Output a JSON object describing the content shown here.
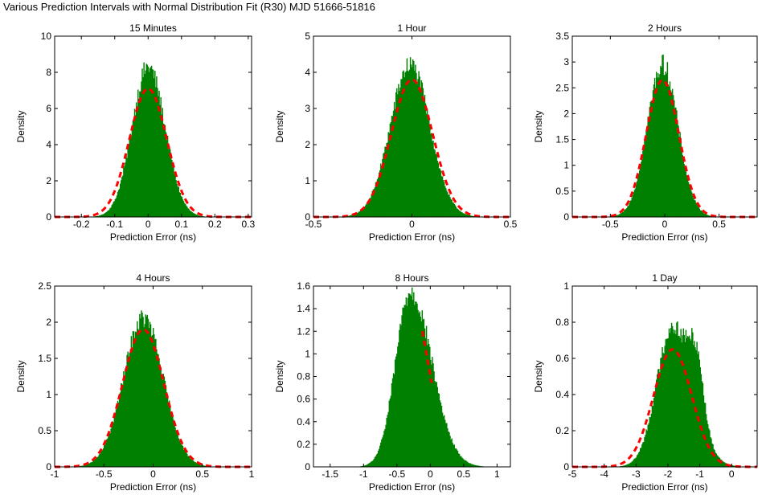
{
  "figure": {
    "title": "Various Prediction Intervals with Normal Distribution Fit (R30) MJD 51666-51816"
  },
  "colors": {
    "histogram": "#008000",
    "fit": "#ff0000",
    "axes": "#000000"
  },
  "chart_data": [
    {
      "type": "bar",
      "title": "15 Minutes",
      "xlabel": "Prediction Error (ns)",
      "ylabel": "Density",
      "xlim": [
        -0.28,
        0.31
      ],
      "ylim": [
        0,
        10
      ],
      "xticks": [
        -0.2,
        -0.1,
        0,
        0.1,
        0.2,
        0.3
      ],
      "xtick_labels": [
        "-0.2",
        "-0.1",
        "0",
        "0.1",
        "0.2",
        "0.3"
      ],
      "yticks": [
        0,
        2,
        4,
        6,
        8,
        10
      ],
      "ytick_labels": [
        "0",
        "2",
        "4",
        "6",
        "8",
        "10"
      ],
      "histogram": {
        "mean": 0.0,
        "std": 0.05,
        "peak": 8.3,
        "left_std": 0.048,
        "right_std": 0.05,
        "skew": 0
      },
      "fit": {
        "mean": 0.0,
        "std": 0.056,
        "peak": 7.1
      },
      "grid": false
    },
    {
      "type": "bar",
      "title": "1 Hour",
      "xlabel": "Prediction Error (ns)",
      "ylabel": "Density",
      "xlim": [
        -0.5,
        0.5
      ],
      "ylim": [
        0,
        5
      ],
      "xticks": [
        -0.5,
        0,
        0.5
      ],
      "xtick_labels": [
        "-0.5",
        "0",
        "0.5"
      ],
      "yticks": [
        0,
        1,
        2,
        3,
        4,
        5
      ],
      "ytick_labels": [
        "0",
        "1",
        "2",
        "3",
        "4",
        "5"
      ],
      "histogram": {
        "mean": -0.01,
        "std": 0.1,
        "peak": 4.2,
        "left_std": 0.1,
        "right_std": 0.1,
        "skew": 0
      },
      "fit": {
        "mean": 0.0,
        "std": 0.105,
        "peak": 3.8
      },
      "grid": false
    },
    {
      "type": "bar",
      "title": "2 Hours",
      "xlabel": "Prediction Error (ns)",
      "ylabel": "Density",
      "xlim": [
        -0.85,
        0.85
      ],
      "ylim": [
        0,
        3.5
      ],
      "xticks": [
        -0.5,
        0,
        0.5
      ],
      "xtick_labels": [
        "-0.5",
        "0",
        "0.5"
      ],
      "yticks": [
        0,
        0.5,
        1,
        1.5,
        2,
        2.5,
        3,
        3.5
      ],
      "ytick_labels": [
        "0",
        "0.5",
        "1",
        "1.5",
        "2",
        "2.5",
        "3",
        "3.5"
      ],
      "histogram": {
        "mean": -0.02,
        "std": 0.14,
        "peak": 2.95,
        "left_std": 0.14,
        "right_std": 0.14,
        "skew": 0
      },
      "fit": {
        "mean": -0.02,
        "std": 0.15,
        "peak": 2.65
      },
      "grid": false
    },
    {
      "type": "bar",
      "title": "4 Hours",
      "xlabel": "Prediction Error (ns)",
      "ylabel": "Density",
      "xlim": [
        -1,
        1
      ],
      "ylim": [
        0,
        2.5
      ],
      "xticks": [
        -1,
        -0.5,
        0,
        0.5,
        1
      ],
      "xtick_labels": [
        "-1",
        "-0.5",
        "0",
        "0.5",
        "1"
      ],
      "yticks": [
        0,
        0.5,
        1,
        1.5,
        2,
        2.5
      ],
      "ytick_labels": [
        "0",
        "0.5",
        "1",
        "1.5",
        "2",
        "2.5"
      ],
      "histogram": {
        "mean": -0.1,
        "std": 0.2,
        "peak": 2.05,
        "left_std": 0.2,
        "right_std": 0.2,
        "skew": 0
      },
      "fit": {
        "mean": -0.1,
        "std": 0.21,
        "peak": 1.9
      },
      "grid": false
    },
    {
      "type": "bar",
      "title": "8 Hours",
      "xlabel": "Prediction Error (ns)",
      "ylabel": "Density",
      "xlim": [
        -1.75,
        1.2
      ],
      "ylim": [
        0,
        1.6
      ],
      "xticks": [
        -1.5,
        -1,
        -0.5,
        0,
        0.5,
        1
      ],
      "xtick_labels": [
        "-1.5",
        "-1",
        "-0.5",
        "0",
        "0.5",
        "1"
      ],
      "yticks": [
        0,
        0.2,
        0.4,
        0.6,
        0.8,
        1,
        1.2,
        1.4,
        1.6
      ],
      "ytick_labels": [
        "0",
        "0.2",
        "0.4",
        "0.6",
        "0.8",
        "1",
        "1.2",
        "1.4",
        "1.6"
      ],
      "histogram": {
        "mean": -0.3,
        "std": 0.27,
        "peak": 1.55,
        "left_std": 0.22,
        "right_std": 0.32,
        "skew": 0
      },
      "fit": {
        "mean": -0.3,
        "std": 0.27,
        "peak": 1.5,
        "visible_from": -0.12,
        "visible_to": 0.02
      },
      "grid": false
    },
    {
      "type": "bar",
      "title": "1 Day",
      "xlabel": "Prediction Error (ns)",
      "ylabel": "Density",
      "xlim": [
        -5,
        0.8
      ],
      "ylim": [
        0,
        1
      ],
      "xticks": [
        -5,
        -4,
        -3,
        -2,
        -1,
        0
      ],
      "xtick_labels": [
        "-5",
        "-4",
        "-3",
        "-2",
        "-1",
        "0"
      ],
      "yticks": [
        0,
        0.2,
        0.4,
        0.6,
        0.8,
        1
      ],
      "ytick_labels": [
        "0",
        "0.2",
        "0.4",
        "0.6",
        "0.8",
        "1"
      ],
      "histogram": {
        "mean": -1.85,
        "std": 0.55,
        "peak": 0.78,
        "left_std": 0.5,
        "right_std": 0.62,
        "skew": 1,
        "shoulder_at": -1.1,
        "shoulder_height": 0.3
      },
      "fit": {
        "mean": -1.85,
        "std": 0.6,
        "peak": 0.65
      },
      "grid": false
    }
  ]
}
